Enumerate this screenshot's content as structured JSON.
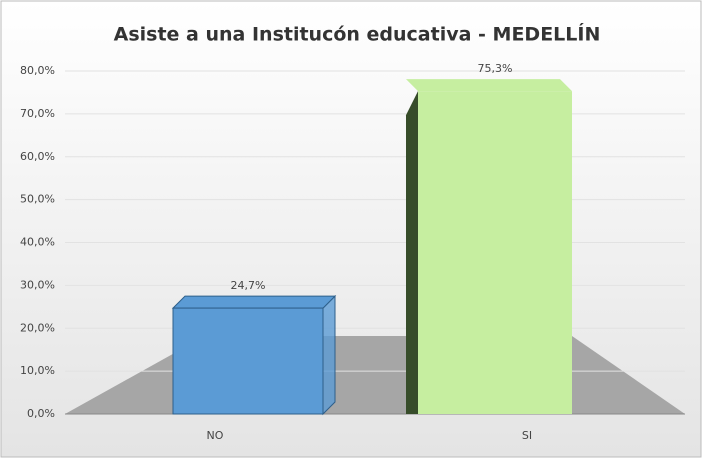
{
  "chart_data": {
    "type": "bar3d",
    "title": "Asiste a una Institucón educativa - MEDELLÍN",
    "categories": [
      "NO",
      "SI"
    ],
    "values": [
      24.7,
      75.3
    ],
    "value_labels": [
      "24,7%",
      "75,3%"
    ],
    "colors": [
      "#5b9bd5",
      "#c6eea0"
    ],
    "ylim": [
      0,
      80
    ],
    "yticks": [
      {
        "value": 0,
        "label": "0,0%"
      },
      {
        "value": 10,
        "label": "10,0%"
      },
      {
        "value": 20,
        "label": "20,0%"
      },
      {
        "value": 30,
        "label": "30,0%"
      },
      {
        "value": 40,
        "label": "40,0%"
      },
      {
        "value": 50,
        "label": "50,0%"
      },
      {
        "value": 60,
        "label": "60,0%"
      },
      {
        "value": 70,
        "label": "70,0%"
      },
      {
        "value": 80,
        "label": "80,0%"
      }
    ],
    "grid": true
  }
}
